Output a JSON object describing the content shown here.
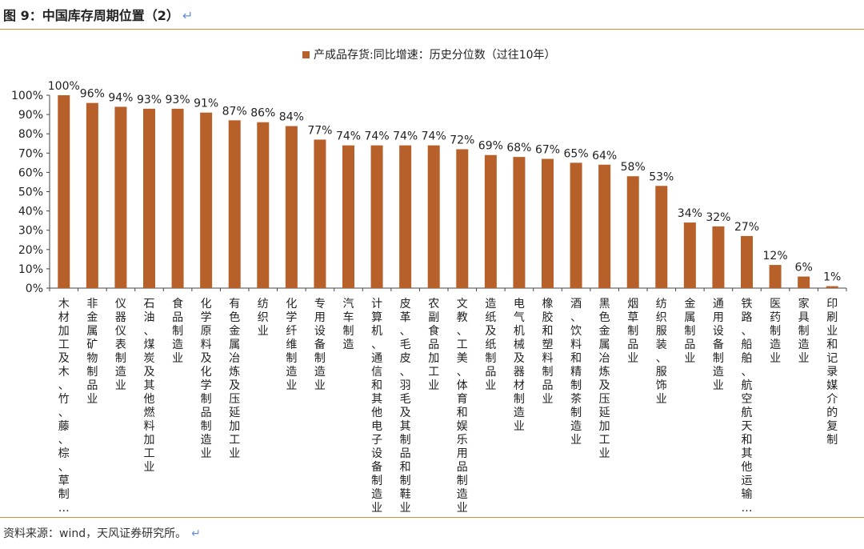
{
  "header": {
    "title": "图 9：中国库存周期位置（2）",
    "return_mark": "↵"
  },
  "footer": {
    "source": "资料来源：wind，天风证券研究所。",
    "return_mark": "↵"
  },
  "colors": {
    "bar": "#B8602A",
    "rule": "#E08A3A"
  },
  "chart_data": {
    "type": "bar",
    "title": "",
    "legend": [
      "产成品存货:同比增速：历史分位数（过往10年）"
    ],
    "legend_position": "top",
    "grid": false,
    "ylim": [
      0,
      100
    ],
    "yticks": [
      "0%",
      "10%",
      "20%",
      "30%",
      "40%",
      "50%",
      "60%",
      "70%",
      "80%",
      "90%",
      "100%"
    ],
    "categories": [
      "木材加工及木、竹、藤、棕、草制…",
      "非金属矿物制品业",
      "仪器仪表制造业",
      "石油、煤炭及其他燃料加工业",
      "食品制造业",
      "化学原料及化学制品制造业",
      "有色金属冶炼及压延加工业",
      "纺织业",
      "化学纤维制造业",
      "专用设备制造业",
      "汽车制造",
      "计算机、通信和其他电子设备制造业",
      "皮革、毛皮、羽毛及其制品和制鞋业",
      "农副食品加工业",
      "文教、工美、体育和娱乐用品制造业",
      "造纸及纸制品业",
      "电气机械及器材制造业",
      "橡胶和塑料制品业",
      "酒、饮料和精制茶制造业",
      "黑色金属冶炼及压延加工业",
      "烟草制品业",
      "纺织服装、服饰业",
      "金属制品业",
      "通用设备制造业",
      "铁路、船舶、航空航天和其他运输…",
      "医药制造业",
      "家具制造业",
      "印刷业和记录媒介的复制"
    ],
    "series": [
      {
        "name": "产成品存货:同比增速：历史分位数（过往10年）",
        "values": [
          100,
          96,
          94,
          93,
          93,
          91,
          87,
          86,
          84,
          77,
          74,
          74,
          74,
          74,
          72,
          69,
          68,
          67,
          65,
          64,
          58,
          53,
          34,
          32,
          27,
          12,
          6,
          1
        ],
        "labels": [
          "100%",
          "96%",
          "94%",
          "93%",
          "93%",
          "91%",
          "87%",
          "86%",
          "84%",
          "77%",
          "74%",
          "74%",
          "74%",
          "74%",
          "72%",
          "69%",
          "68%",
          "67%",
          "65%",
          "64%",
          "58%",
          "53%",
          "34%",
          "32%",
          "27%",
          "12%",
          "6%",
          "1%"
        ]
      }
    ]
  }
}
